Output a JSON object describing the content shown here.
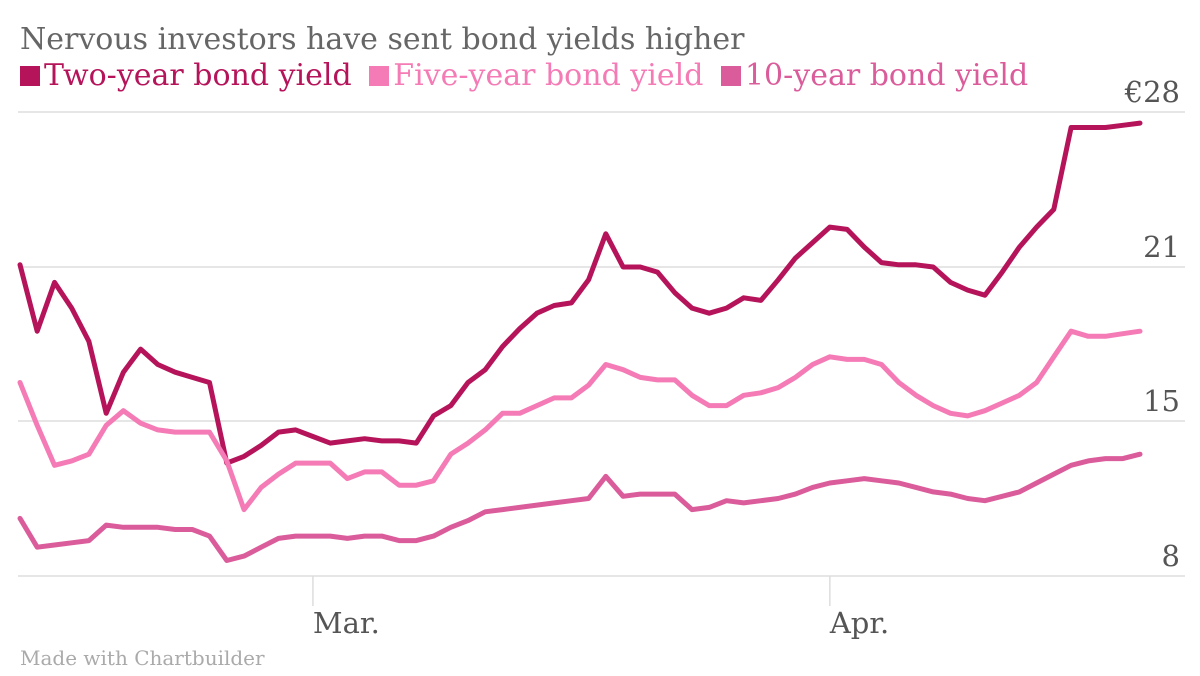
{
  "title": "Nervous investors have sent bond yields higher",
  "source": "Made with Chartbuilder",
  "colors": {
    "two_year": "#B5145A",
    "five_year": "#F47BB5",
    "ten_year": "#DB5C9B",
    "grid": "#dddddd",
    "axis_text": "#555555"
  },
  "chart_data": {
    "type": "line",
    "title": "Nervous investors have sent bond yields higher",
    "xlabel": "",
    "ylabel": "",
    "x_ticks": [
      "Mar.",
      "Apr."
    ],
    "y_ticks": [
      8,
      15,
      21,
      28
    ],
    "y_tick_labels": [
      "8",
      "15",
      "21",
      "€28"
    ],
    "ylim": [
      8,
      28
    ],
    "grid": true,
    "legend_position": "top-left",
    "x": [
      0,
      1,
      2,
      3,
      4,
      5,
      6,
      7,
      8,
      9,
      10,
      11,
      12,
      13,
      14,
      15,
      16,
      17,
      18,
      19,
      20,
      21,
      22,
      23,
      24,
      25,
      26,
      27,
      28,
      29,
      30,
      31,
      32,
      33,
      34,
      35,
      36,
      37,
      38,
      39,
      40,
      41,
      42,
      43,
      44,
      45,
      46,
      47,
      48,
      49,
      50,
      51,
      52,
      53,
      54,
      55,
      56,
      57,
      58,
      59,
      60,
      61,
      62,
      63,
      64,
      65
    ],
    "x_tick_positions": [
      17,
      47
    ],
    "series": [
      {
        "name": "Two-year bond yield",
        "values": [
          21.1,
          18.5,
          20.4,
          19.4,
          18.1,
          15.3,
          16.9,
          17.8,
          17.2,
          16.9,
          16.7,
          16.5,
          13.1,
          13.4,
          13.9,
          14.5,
          14.6,
          14.3,
          14.0,
          14.1,
          14.2,
          14.1,
          14.1,
          14.0,
          15.2,
          15.6,
          16.5,
          17.0,
          17.9,
          18.6,
          19.2,
          19.5,
          19.6,
          20.5,
          22.5,
          21.0,
          21.0,
          20.8,
          20.0,
          19.4,
          19.2,
          19.4,
          19.8,
          19.7,
          20.5,
          21.4,
          22.1,
          22.8,
          22.7,
          21.9,
          21.2,
          21.1,
          21.1,
          21.0,
          20.4,
          20.1,
          19.9,
          20.8,
          21.9,
          22.8,
          23.6,
          27.3,
          27.3,
          27.3,
          27.4,
          27.5
        ],
        "color": "#B5145A"
      },
      {
        "name": "Five-year bond yield",
        "values": [
          16.5,
          14.8,
          13.0,
          13.2,
          13.5,
          14.8,
          15.4,
          14.9,
          14.6,
          14.5,
          14.5,
          14.5,
          13.2,
          11.0,
          12.0,
          12.6,
          13.1,
          13.1,
          13.1,
          12.4,
          12.7,
          12.7,
          12.1,
          12.1,
          12.3,
          13.5,
          14.0,
          14.6,
          15.3,
          15.3,
          15.6,
          15.9,
          15.9,
          16.4,
          17.2,
          17.0,
          16.7,
          16.6,
          16.6,
          16.0,
          15.6,
          15.6,
          16.0,
          16.1,
          16.3,
          16.7,
          17.2,
          17.5,
          17.4,
          17.4,
          17.2,
          16.5,
          16.0,
          15.6,
          15.3,
          15.2,
          15.4,
          15.7,
          16.0,
          16.5,
          17.5,
          18.5,
          18.3,
          18.3,
          18.4,
          18.5
        ],
        "color": "#F47BB5"
      },
      {
        "name": "10-year bond yield",
        "values": [
          10.6,
          9.3,
          9.4,
          9.5,
          9.6,
          10.3,
          10.2,
          10.2,
          10.2,
          10.1,
          10.1,
          9.8,
          8.7,
          8.9,
          9.3,
          9.7,
          9.8,
          9.8,
          9.8,
          9.7,
          9.8,
          9.8,
          9.6,
          9.6,
          9.8,
          10.2,
          10.5,
          10.9,
          11.0,
          11.1,
          11.2,
          11.3,
          11.4,
          11.5,
          12.5,
          11.6,
          11.7,
          11.7,
          11.7,
          11.0,
          11.1,
          11.4,
          11.3,
          11.4,
          11.5,
          11.7,
          12.0,
          12.2,
          12.3,
          12.4,
          12.3,
          12.2,
          12.0,
          11.8,
          11.7,
          11.5,
          11.4,
          11.6,
          11.8,
          12.2,
          12.6,
          13.0,
          13.2,
          13.3,
          13.3,
          13.5
        ],
        "color": "#DB5C9B"
      }
    ]
  }
}
